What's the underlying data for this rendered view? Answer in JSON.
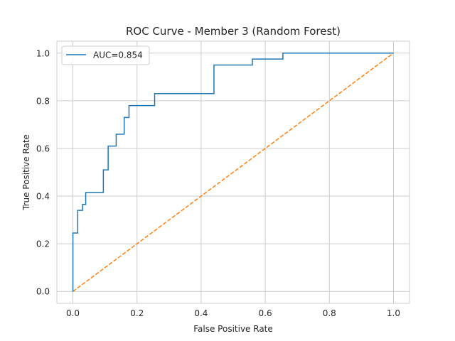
{
  "chart_data": {
    "type": "line",
    "title": "ROC Curve - Member 3 (Random Forest)",
    "xlabel": "False Positive Rate",
    "ylabel": "True Positive Rate",
    "xlim": [
      -0.05,
      1.05
    ],
    "ylim": [
      -0.05,
      1.05
    ],
    "grid": true,
    "legend_position": "upper-left",
    "x_ticks": [
      {
        "value": 0.0,
        "label": "0.0"
      },
      {
        "value": 0.2,
        "label": "0.2"
      },
      {
        "value": 0.4,
        "label": "0.4"
      },
      {
        "value": 0.6,
        "label": "0.6"
      },
      {
        "value": 0.8,
        "label": "0.8"
      },
      {
        "value": 1.0,
        "label": "1.0"
      }
    ],
    "y_ticks": [
      {
        "value": 0.0,
        "label": "0.0"
      },
      {
        "value": 0.2,
        "label": "0.2"
      },
      {
        "value": 0.4,
        "label": "0.4"
      },
      {
        "value": 0.6,
        "label": "0.6"
      },
      {
        "value": 0.8,
        "label": "0.8"
      },
      {
        "value": 1.0,
        "label": "1.0"
      }
    ],
    "series": [
      {
        "name": "AUC=0.854",
        "color": "#1f77b4",
        "line_style": "solid",
        "x": [
          0.0,
          0.0,
          0.0,
          0.015,
          0.015,
          0.03,
          0.03,
          0.04,
          0.04,
          0.095,
          0.095,
          0.11,
          0.11,
          0.135,
          0.135,
          0.16,
          0.16,
          0.175,
          0.175,
          0.255,
          0.255,
          0.44,
          0.44,
          0.56,
          0.56,
          0.655,
          0.655,
          1.0
        ],
        "y": [
          0.0,
          0.0,
          0.245,
          0.245,
          0.34,
          0.34,
          0.365,
          0.365,
          0.415,
          0.415,
          0.51,
          0.51,
          0.61,
          0.61,
          0.66,
          0.66,
          0.73,
          0.73,
          0.78,
          0.78,
          0.83,
          0.83,
          0.95,
          0.95,
          0.975,
          0.975,
          1.0,
          1.0
        ]
      },
      {
        "name": "",
        "color": "#ff7f0e",
        "line_style": "dashed",
        "x": [
          0.0,
          1.0
        ],
        "y": [
          0.0,
          1.0
        ]
      }
    ]
  }
}
